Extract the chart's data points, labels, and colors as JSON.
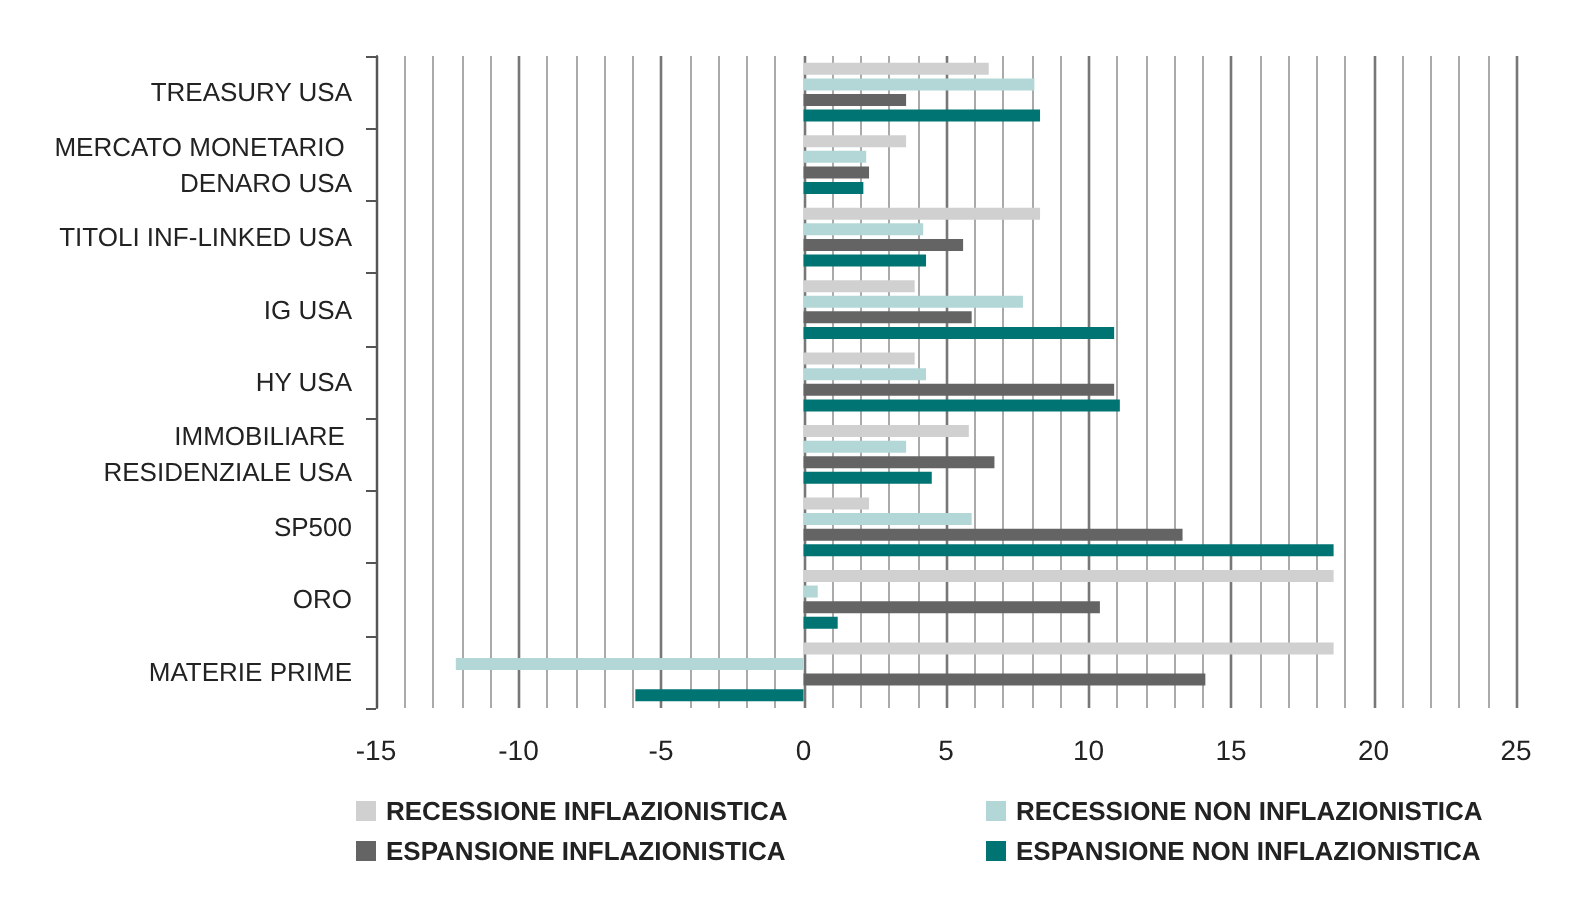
{
  "chart_data": {
    "type": "bar",
    "orientation": "horizontal",
    "categories": [
      "TREASURY USA",
      "MERCATO MONETARIO DENARO USA",
      "TITOLI INF-LINKED USA",
      "IG USA",
      "HY USA",
      "IMMOBILIARE RESIDENZIALE USA",
      "SP500",
      "ORO",
      "MATERIE PRIME"
    ],
    "series": [
      {
        "name": "RECESSIONE INFLAZIONISTICA",
        "color": "#d0d0d0",
        "values": [
          6.5,
          3.6,
          8.3,
          3.9,
          3.9,
          5.8,
          2.3,
          18.6,
          18.6
        ]
      },
      {
        "name": "RECESSIONE NON INFLAZIONISTICA",
        "color": "#b3d7d7",
        "values": [
          8.1,
          2.2,
          4.2,
          7.7,
          4.3,
          3.6,
          5.9,
          0.5,
          -12.2
        ]
      },
      {
        "name": "ESPANSIONE INFLAZIONISTICA",
        "color": "#646464",
        "values": [
          3.6,
          2.3,
          5.6,
          5.9,
          10.9,
          6.7,
          13.3,
          10.4,
          14.1
        ]
      },
      {
        "name": "ESPANSIONE NON INFLAZIONISTICA",
        "color": "#007473",
        "values": [
          8.3,
          2.1,
          4.3,
          10.9,
          11.1,
          4.5,
          18.6,
          1.2,
          -5.9
        ]
      }
    ],
    "xlim": [
      -15,
      25
    ],
    "xticks": [
      -15,
      -10,
      -5,
      0,
      5,
      10,
      15,
      20,
      25
    ],
    "grid": "x",
    "legend": "bottom"
  }
}
